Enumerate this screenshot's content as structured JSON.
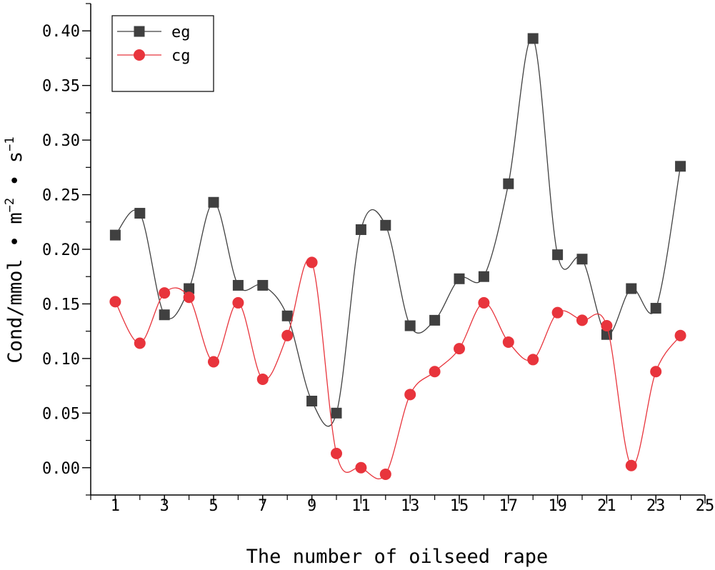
{
  "chart_data": {
    "type": "line",
    "xlabel": "The number of oilseed rape",
    "ylabel": {
      "base": "Cond/mmol • m",
      "sup1": "−2",
      "mid": " • s",
      "sup2": "−1"
    },
    "xlim": [
      0,
      25
    ],
    "ylim": [
      -0.025,
      0.425
    ],
    "xticks": [
      "1",
      "3",
      "5",
      "7",
      "9",
      "11",
      "13",
      "15",
      "17",
      "19",
      "21",
      "23",
      "25"
    ],
    "yticks": [
      "0.00",
      "0.05",
      "0.10",
      "0.15",
      "0.20",
      "0.25",
      "0.30",
      "0.35",
      "0.40"
    ],
    "legend_position": "top-left",
    "grid": false,
    "x": [
      1,
      2,
      3,
      4,
      5,
      6,
      7,
      8,
      9,
      10,
      11,
      12,
      13,
      14,
      15,
      16,
      17,
      18,
      19,
      20,
      21,
      22,
      23,
      24
    ],
    "series": [
      {
        "name": "eg",
        "color": "#404040",
        "marker": "square",
        "values": [
          0.213,
          0.233,
          0.14,
          0.164,
          0.243,
          0.167,
          0.167,
          0.139,
          0.061,
          0.05,
          0.218,
          0.222,
          0.13,
          0.135,
          0.173,
          0.175,
          0.26,
          0.393,
          0.195,
          0.191,
          0.122,
          0.164,
          0.146,
          0.276
        ]
      },
      {
        "name": "cg",
        "color": "#e8343c",
        "marker": "circle",
        "values": [
          0.152,
          0.114,
          0.16,
          0.156,
          0.097,
          0.151,
          0.081,
          0.121,
          0.188,
          0.013,
          0.0,
          -0.006,
          0.067,
          0.088,
          0.109,
          0.151,
          0.115,
          0.099,
          0.142,
          0.135,
          0.13,
          0.002,
          0.088,
          0.121
        ]
      }
    ]
  }
}
